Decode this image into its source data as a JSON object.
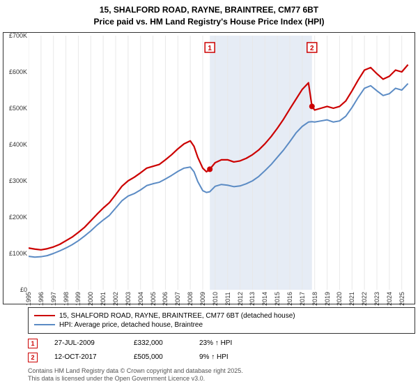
{
  "title": {
    "address": "15, SHALFORD ROAD, RAYNE, BRAINTREE, CM77 6BT",
    "subtitle": "Price paid vs. HM Land Registry's House Price Index (HPI)"
  },
  "chart": {
    "type": "line",
    "background_color": "#ffffff",
    "grid_color_x": "#e8e8e8",
    "sale_band_color": "#e6ecf5",
    "x": {
      "min": 1995,
      "max": 2025.8,
      "ticks": [
        1995,
        1996,
        1997,
        1998,
        1999,
        2000,
        2001,
        2002,
        2003,
        2004,
        2005,
        2006,
        2007,
        2008,
        2009,
        2010,
        2011,
        2012,
        2013,
        2014,
        2015,
        2016,
        2017,
        2018,
        2019,
        2020,
        2021,
        2022,
        2023,
        2024,
        2025
      ]
    },
    "y": {
      "min": 0,
      "max": 700000,
      "ticks": [
        0,
        100000,
        200000,
        300000,
        400000,
        500000,
        600000,
        700000
      ],
      "tick_labels": [
        "£0",
        "£100K",
        "£200K",
        "£300K",
        "£400K",
        "£500K",
        "£600K",
        "£700K"
      ]
    },
    "sale_band": {
      "from": 2009.57,
      "to": 2017.78
    },
    "series": [
      {
        "name": "property",
        "color": "#cc0000",
        "width": 2.2,
        "points": [
          [
            1995,
            115000
          ],
          [
            1995.5,
            112000
          ],
          [
            1996,
            110000
          ],
          [
            1996.5,
            113000
          ],
          [
            1997,
            118000
          ],
          [
            1997.5,
            125000
          ],
          [
            1998,
            135000
          ],
          [
            1998.5,
            145000
          ],
          [
            1999,
            158000
          ],
          [
            1999.5,
            172000
          ],
          [
            2000,
            190000
          ],
          [
            2000.5,
            208000
          ],
          [
            2001,
            225000
          ],
          [
            2001.5,
            240000
          ],
          [
            2002,
            262000
          ],
          [
            2002.5,
            285000
          ],
          [
            2003,
            300000
          ],
          [
            2003.5,
            310000
          ],
          [
            2004,
            322000
          ],
          [
            2004.5,
            335000
          ],
          [
            2005,
            340000
          ],
          [
            2005.5,
            345000
          ],
          [
            2006,
            358000
          ],
          [
            2006.5,
            372000
          ],
          [
            2007,
            388000
          ],
          [
            2007.5,
            402000
          ],
          [
            2008,
            410000
          ],
          [
            2008.3,
            395000
          ],
          [
            2008.6,
            365000
          ],
          [
            2009,
            335000
          ],
          [
            2009.3,
            325000
          ],
          [
            2009.57,
            332000
          ],
          [
            2010,
            350000
          ],
          [
            2010.5,
            358000
          ],
          [
            2011,
            358000
          ],
          [
            2011.5,
            352000
          ],
          [
            2012,
            355000
          ],
          [
            2012.5,
            362000
          ],
          [
            2013,
            372000
          ],
          [
            2013.5,
            385000
          ],
          [
            2014,
            402000
          ],
          [
            2014.5,
            422000
          ],
          [
            2015,
            445000
          ],
          [
            2015.5,
            470000
          ],
          [
            2016,
            498000
          ],
          [
            2016.5,
            525000
          ],
          [
            2017,
            552000
          ],
          [
            2017.5,
            570000
          ],
          [
            2017.78,
            505000
          ],
          [
            2018,
            495000
          ],
          [
            2018.5,
            500000
          ],
          [
            2019,
            505000
          ],
          [
            2019.5,
            500000
          ],
          [
            2020,
            505000
          ],
          [
            2020.5,
            520000
          ],
          [
            2021,
            548000
          ],
          [
            2021.5,
            578000
          ],
          [
            2022,
            605000
          ],
          [
            2022.5,
            612000
          ],
          [
            2023,
            595000
          ],
          [
            2023.5,
            580000
          ],
          [
            2024,
            588000
          ],
          [
            2024.5,
            605000
          ],
          [
            2025,
            600000
          ],
          [
            2025.5,
            620000
          ]
        ]
      },
      {
        "name": "hpi",
        "color": "#5b8bc4",
        "width": 2,
        "points": [
          [
            1995,
            92000
          ],
          [
            1995.5,
            90000
          ],
          [
            1996,
            91000
          ],
          [
            1996.5,
            94000
          ],
          [
            1997,
            100000
          ],
          [
            1997.5,
            107000
          ],
          [
            1998,
            115000
          ],
          [
            1998.5,
            124000
          ],
          [
            1999,
            135000
          ],
          [
            1999.5,
            148000
          ],
          [
            2000,
            162000
          ],
          [
            2000.5,
            178000
          ],
          [
            2001,
            192000
          ],
          [
            2001.5,
            205000
          ],
          [
            2002,
            225000
          ],
          [
            2002.5,
            245000
          ],
          [
            2003,
            258000
          ],
          [
            2003.5,
            265000
          ],
          [
            2004,
            275000
          ],
          [
            2004.5,
            287000
          ],
          [
            2005,
            292000
          ],
          [
            2005.5,
            296000
          ],
          [
            2006,
            305000
          ],
          [
            2006.5,
            315000
          ],
          [
            2007,
            326000
          ],
          [
            2007.5,
            335000
          ],
          [
            2008,
            338000
          ],
          [
            2008.3,
            325000
          ],
          [
            2008.6,
            298000
          ],
          [
            2009,
            273000
          ],
          [
            2009.3,
            268000
          ],
          [
            2009.57,
            270000
          ],
          [
            2010,
            285000
          ],
          [
            2010.5,
            290000
          ],
          [
            2011,
            288000
          ],
          [
            2011.5,
            284000
          ],
          [
            2012,
            286000
          ],
          [
            2012.5,
            292000
          ],
          [
            2013,
            300000
          ],
          [
            2013.5,
            312000
          ],
          [
            2014,
            328000
          ],
          [
            2014.5,
            345000
          ],
          [
            2015,
            365000
          ],
          [
            2015.5,
            385000
          ],
          [
            2016,
            408000
          ],
          [
            2016.5,
            432000
          ],
          [
            2017,
            450000
          ],
          [
            2017.5,
            462000
          ],
          [
            2017.78,
            463000
          ],
          [
            2018,
            462000
          ],
          [
            2018.5,
            465000
          ],
          [
            2019,
            468000
          ],
          [
            2019.5,
            462000
          ],
          [
            2020,
            465000
          ],
          [
            2020.5,
            478000
          ],
          [
            2021,
            502000
          ],
          [
            2021.5,
            530000
          ],
          [
            2022,
            555000
          ],
          [
            2022.5,
            562000
          ],
          [
            2023,
            548000
          ],
          [
            2023.5,
            535000
          ],
          [
            2024,
            540000
          ],
          [
            2024.5,
            555000
          ],
          [
            2025,
            550000
          ],
          [
            2025.5,
            568000
          ]
        ]
      }
    ],
    "sale_markers": [
      {
        "num": "1",
        "x": 2009.57,
        "y": 332000,
        "dot_color": "#cc0000",
        "box_border": "#cc0000",
        "box_text": "#cc0000"
      },
      {
        "num": "2",
        "x": 2017.78,
        "y": 505000,
        "dot_color": "#cc0000",
        "box_border": "#cc0000",
        "box_text": "#cc0000"
      }
    ]
  },
  "legend": {
    "series1": "15, SHALFORD ROAD, RAYNE, BRAINTREE, CM77 6BT (detached house)",
    "series2": "HPI: Average price, detached house, Braintree"
  },
  "sales": [
    {
      "num": "1",
      "date": "27-JUL-2009",
      "price_label": "£332,000",
      "hpi_delta": "23% ↑ HPI",
      "border": "#cc0000"
    },
    {
      "num": "2",
      "date": "12-OCT-2017",
      "price_label": "£505,000",
      "hpi_delta": "9% ↑ HPI",
      "border": "#cc0000"
    }
  ],
  "footer": {
    "line1": "Contains HM Land Registry data © Crown copyright and database right 2025.",
    "line2": "This data is licensed under the Open Government Licence v3.0."
  }
}
